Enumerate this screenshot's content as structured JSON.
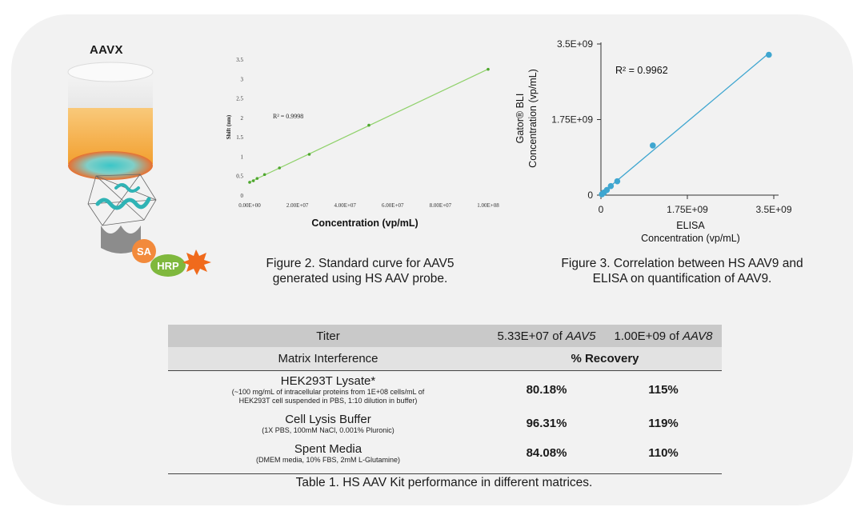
{
  "probe": {
    "title": "AAVX",
    "sa_label": "SA",
    "hrp_label": "HRP"
  },
  "figure2": {
    "caption": "Figure 2. Standard curve for AAV5 generated using HS AAV probe.",
    "chart_data": {
      "type": "scatter",
      "title": "",
      "xlabel": "Concentration (vp/mL)",
      "ylabel": "Shift (nm)",
      "xlim": [
        0,
        100000000
      ],
      "ylim": [
        0,
        3.5
      ],
      "x_ticks": [
        "0.00E+00",
        "2.00E+07",
        "4.00E+07",
        "6.00E+07",
        "8.00E+07",
        "1.00E+08"
      ],
      "y_ticks": [
        "0",
        "0.5",
        "1",
        "1.5",
        "2",
        "2.5",
        "3",
        "3.5"
      ],
      "annotation": "R² = 0.9998",
      "trendline": true,
      "grid": false,
      "colors": {
        "points": "#4ea72e",
        "line": "#8fd16a"
      },
      "series": [
        {
          "x": [
            0,
            1560000,
            3125000,
            6250000,
            12500000,
            25000000,
            50000000,
            100000000
          ],
          "y": [
            0.33,
            0.37,
            0.43,
            0.53,
            0.7,
            1.05,
            1.8,
            3.24
          ]
        }
      ]
    }
  },
  "figure3": {
    "caption": "Figure 3. Correlation between HS AAV9 and ELISA on quantification of AAV9.",
    "chart_data": {
      "type": "scatter",
      "title": "",
      "xlabel_line1": "ELISA",
      "xlabel_line2": "Concentration (vp/mL)",
      "ylabel_line1": "Gator® BLI",
      "ylabel_line2": "Concentration (vp/mL)",
      "xlim": [
        0,
        3500000000
      ],
      "ylim": [
        0,
        3500000000
      ],
      "x_ticks": [
        "0",
        "1.75E+09",
        "3.5E+09"
      ],
      "y_ticks": [
        "0",
        "1.75E+09",
        "3.5E+09"
      ],
      "annotation": "R² = 0.9962",
      "trendline": true,
      "grid": false,
      "colors": {
        "points": "#3fa6d0",
        "line": "#3fa6d0"
      },
      "series": [
        {
          "x": [
            20000000,
            60000000,
            120000000,
            200000000,
            330000000,
            1050000000,
            3400000000
          ],
          "y": [
            20000000,
            60000000,
            120000000,
            210000000,
            320000000,
            1150000000,
            3250000000
          ]
        }
      ]
    }
  },
  "table": {
    "header": {
      "col1": "Titer",
      "col2_value": "5.33E+07 of ",
      "col2_strain": "AAV5",
      "col3_value": "1.00E+09 of ",
      "col3_strain": "AAV8"
    },
    "subheader": {
      "col1": "Matrix Interference",
      "col2": "% Recovery"
    },
    "rows": [
      {
        "name": "HEK293T Lysate*",
        "desc1": "(~100 mg/mL of intracellular proteins from 1E+08 cells/mL of",
        "desc2": "HEK293T cell suspended in PBS, 1:10 dilution in buffer)",
        "v1": "80.18%",
        "v2": "115%"
      },
      {
        "name": "Cell Lysis Buffer",
        "desc1": "(1X PBS, 100mM NaCl, 0.001% Pluronic)",
        "v1": "96.31%",
        "v2": "119%"
      },
      {
        "name": "Spent Media",
        "desc1": "(DMEM media, 10% FBS, 2mM L-Glutamine)",
        "v1": "84.08%",
        "v2": "110%"
      }
    ],
    "caption": "Table 1. HS AAV Kit performance in different matrices."
  }
}
